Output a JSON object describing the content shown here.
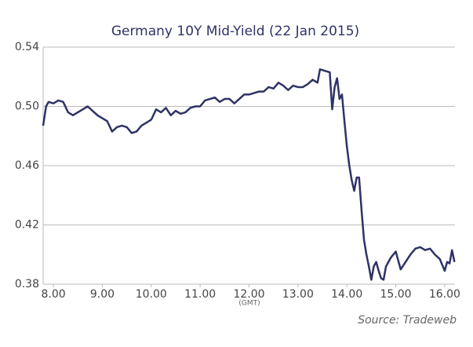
{
  "chart_data": {
    "type": "line",
    "title": "Germany 10Y Mid-Yield (22 Jan 2015)",
    "x_axis_note": "(GMT)",
    "source": "Source: Tradeweb",
    "xlim": [
      7.79,
      16.21
    ],
    "ylim": [
      0.38,
      0.54
    ],
    "xticks": [
      {
        "value": 8,
        "label": "8.00"
      },
      {
        "value": 9,
        "label": "9.00"
      },
      {
        "value": 10,
        "label": "10.00"
      },
      {
        "value": 11,
        "label": "11.00"
      },
      {
        "value": 12,
        "label": "12.00"
      },
      {
        "value": 13,
        "label": "13.00"
      },
      {
        "value": 14,
        "label": "14.00"
      },
      {
        "value": 15,
        "label": "15.00"
      },
      {
        "value": 16,
        "label": "16.00"
      }
    ],
    "yticks": [
      {
        "value": 0.38,
        "label": "0.38"
      },
      {
        "value": 0.42,
        "label": "0.42"
      },
      {
        "value": 0.46,
        "label": "0.46"
      },
      {
        "value": 0.5,
        "label": "0.50"
      },
      0.54
    ],
    "grid": true,
    "series": [
      {
        "name": "Mid-Yield",
        "color": "#2e3366",
        "x": [
          7.79,
          7.85,
          7.9,
          8.0,
          8.1,
          8.2,
          8.3,
          8.4,
          8.5,
          8.6,
          8.7,
          8.8,
          8.9,
          9.0,
          9.1,
          9.2,
          9.3,
          9.4,
          9.5,
          9.6,
          9.7,
          9.8,
          9.9,
          10.0,
          10.1,
          10.2,
          10.3,
          10.4,
          10.5,
          10.6,
          10.7,
          10.8,
          10.9,
          11.0,
          11.1,
          11.2,
          11.3,
          11.4,
          11.5,
          11.6,
          11.7,
          11.8,
          11.9,
          12.0,
          12.1,
          12.2,
          12.3,
          12.4,
          12.5,
          12.6,
          12.7,
          12.8,
          12.9,
          13.0,
          13.1,
          13.2,
          13.3,
          13.4,
          13.45,
          13.55,
          13.65,
          13.7,
          13.75,
          13.8,
          13.85,
          13.9,
          13.95,
          14.0,
          14.05,
          14.1,
          14.15,
          14.2,
          14.25,
          14.3,
          14.35,
          14.4,
          14.45,
          14.5,
          14.55,
          14.6,
          14.65,
          14.7,
          14.75,
          14.8,
          14.9,
          15.0,
          15.1,
          15.2,
          15.3,
          15.4,
          15.5,
          15.6,
          15.7,
          15.8,
          15.9,
          16.0,
          16.05,
          16.1,
          16.15,
          16.2
        ],
        "values": [
          0.487,
          0.5,
          0.503,
          0.502,
          0.504,
          0.503,
          0.496,
          0.494,
          0.496,
          0.498,
          0.5,
          0.497,
          0.494,
          0.492,
          0.49,
          0.483,
          0.486,
          0.487,
          0.486,
          0.482,
          0.483,
          0.487,
          0.489,
          0.491,
          0.498,
          0.496,
          0.499,
          0.494,
          0.497,
          0.495,
          0.496,
          0.499,
          0.5,
          0.5,
          0.504,
          0.505,
          0.506,
          0.503,
          0.505,
          0.505,
          0.502,
          0.505,
          0.508,
          0.508,
          0.509,
          0.51,
          0.51,
          0.513,
          0.512,
          0.516,
          0.514,
          0.511,
          0.514,
          0.513,
          0.513,
          0.515,
          0.518,
          0.516,
          0.525,
          0.524,
          0.523,
          0.498,
          0.513,
          0.519,
          0.505,
          0.508,
          0.49,
          0.473,
          0.46,
          0.45,
          0.443,
          0.452,
          0.452,
          0.43,
          0.41,
          0.4,
          0.392,
          0.383,
          0.392,
          0.395,
          0.389,
          0.384,
          0.383,
          0.392,
          0.398,
          0.402,
          0.39,
          0.395,
          0.4,
          0.404,
          0.405,
          0.403,
          0.404,
          0.4,
          0.397,
          0.389,
          0.395,
          0.394,
          0.403,
          0.395
        ]
      }
    ]
  }
}
